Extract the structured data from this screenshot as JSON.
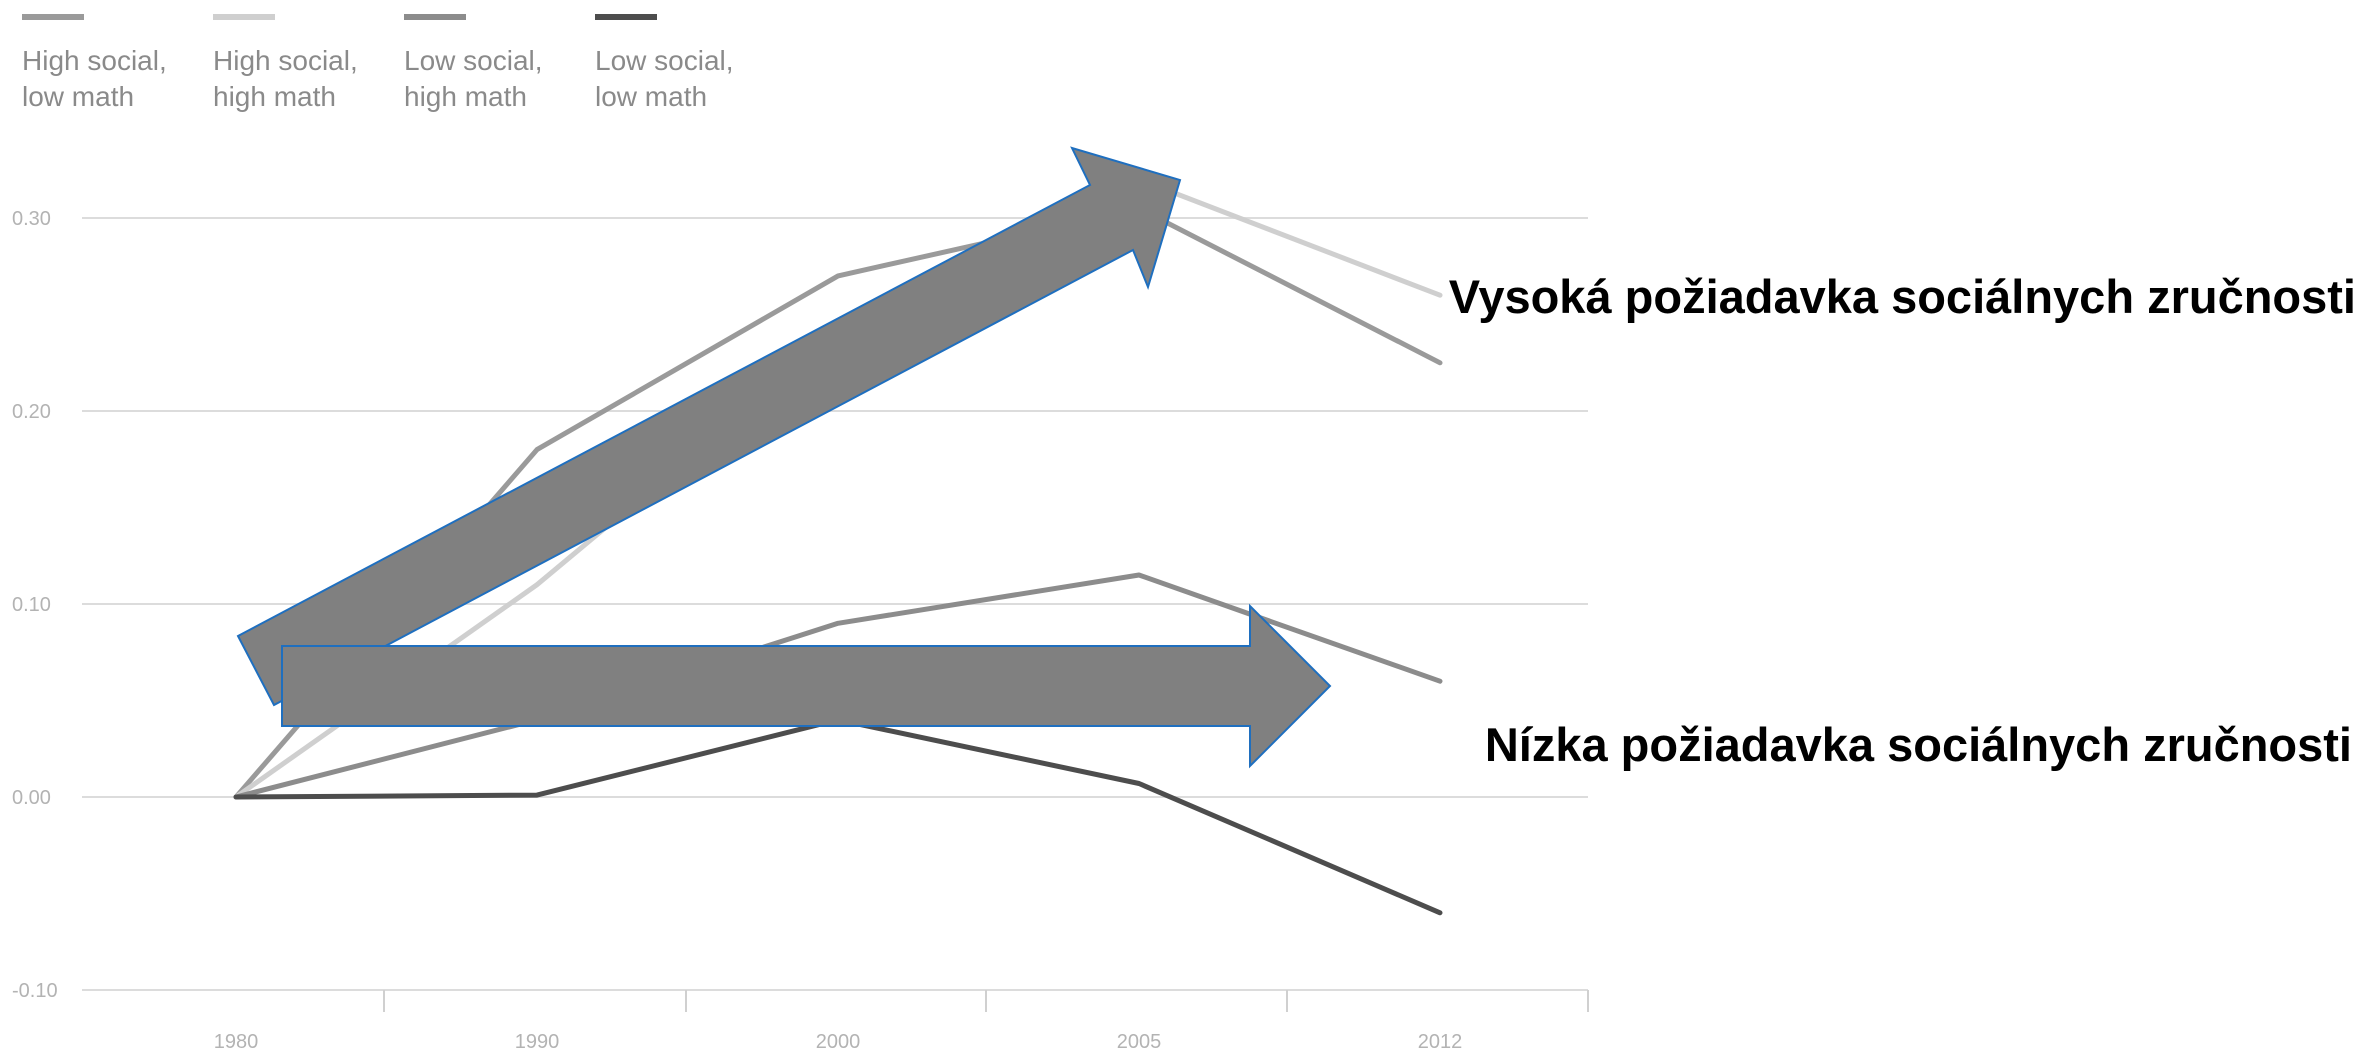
{
  "chart_data": {
    "type": "line",
    "x": [
      "1980",
      "1990",
      "2000",
      "2005",
      "2012"
    ],
    "ylim": [
      -0.1,
      0.3
    ],
    "y_ticks": [
      "0.30",
      "0.20",
      "0.10",
      "0.00",
      "-0.10"
    ],
    "grid": true,
    "legend_position": "top-left",
    "series": [
      {
        "name": "High social, low math",
        "legend_lines": [
          "High social,",
          "low math"
        ],
        "color": "#9a9a9a",
        "values": [
          0.0,
          0.18,
          0.27,
          0.305,
          0.225
        ]
      },
      {
        "name": "High social, high math",
        "legend_lines": [
          "High social,",
          "high math"
        ],
        "color": "#cfcfcf",
        "values": [
          0.0,
          0.11,
          0.24,
          0.32,
          0.26
        ]
      },
      {
        "name": "Low social, high math",
        "legend_lines": [
          "Low social,",
          "high math"
        ],
        "color": "#8c8c8c",
        "values": [
          0.0,
          0.04,
          0.09,
          0.115,
          0.06
        ]
      },
      {
        "name": "Low social, low math",
        "legend_lines": [
          "Low social,",
          "low math"
        ],
        "color": "#4d4d4d",
        "values": [
          0.0,
          0.001,
          0.04,
          0.007,
          -0.06
        ]
      }
    ],
    "annotations": [
      {
        "text": "Vysoká požiadavka sociálnych zručnosti",
        "direction": "rising"
      },
      {
        "text": "Nízka požiadavka sociálnych zručnosti",
        "direction": "flat"
      }
    ],
    "arrow_color": "#808080",
    "arrow_outline": "#1f6fbf"
  }
}
